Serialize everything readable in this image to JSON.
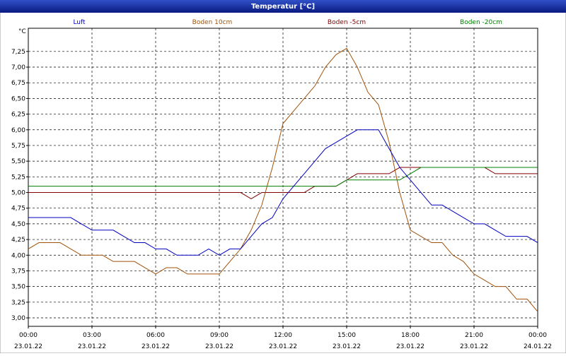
{
  "chart_data": {
    "type": "line",
    "title": "Temperatur [°C]",
    "y_unit": "°C",
    "xlim": [
      0,
      24
    ],
    "ylim": [
      2.865,
      7.62
    ],
    "xticks": [
      {
        "value": 0,
        "label": "00:00",
        "sublabel": "23.01.22"
      },
      {
        "value": 3,
        "label": "03:00",
        "sublabel": "23.01.22"
      },
      {
        "value": 6,
        "label": "06:00",
        "sublabel": "23.01.22"
      },
      {
        "value": 9,
        "label": "09:00",
        "sublabel": "23.01.22"
      },
      {
        "value": 12,
        "label": "12:00",
        "sublabel": "23.01.22"
      },
      {
        "value": 15,
        "label": "15:00",
        "sublabel": "23.01.22"
      },
      {
        "value": 18,
        "label": "18:00",
        "sublabel": "23.01.22"
      },
      {
        "value": 21,
        "label": "21:00",
        "sublabel": "23.01.22"
      },
      {
        "value": 24,
        "label": "00:00",
        "sublabel": "24.01.22"
      }
    ],
    "yticks": [
      {
        "value": 3,
        "label": "3,00"
      },
      {
        "value": 3.25,
        "label": "3,25"
      },
      {
        "value": 3.5,
        "label": "3,50"
      },
      {
        "value": 3.75,
        "label": "3,75"
      },
      {
        "value": 4,
        "label": "4,00"
      },
      {
        "value": 4.25,
        "label": "4,25"
      },
      {
        "value": 4.5,
        "label": "4,50"
      },
      {
        "value": 4.75,
        "label": "4,75"
      },
      {
        "value": 5,
        "label": "5,00"
      },
      {
        "value": 5.25,
        "label": "5,25"
      },
      {
        "value": 5.5,
        "label": "5,50"
      },
      {
        "value": 5.75,
        "label": "5,75"
      },
      {
        "value": 6,
        "label": "6,00"
      },
      {
        "value": 6.25,
        "label": "6,25"
      },
      {
        "value": 6.5,
        "label": "6,50"
      },
      {
        "value": 6.75,
        "label": "6,75"
      },
      {
        "value": 7,
        "label": "7,00"
      },
      {
        "value": 7.25,
        "label": "7,25"
      }
    ],
    "grid": true,
    "x": [
      0,
      0.5,
      1,
      1.5,
      2,
      2.5,
      3,
      3.5,
      4,
      4.5,
      5,
      5.5,
      6,
      6.5,
      7,
      7.5,
      8,
      8.5,
      9,
      9.5,
      10,
      10.5,
      11,
      11.5,
      12,
      12.5,
      13,
      13.5,
      14,
      14.5,
      15,
      15.5,
      16,
      16.5,
      17,
      17.5,
      18,
      18.5,
      19,
      19.5,
      20,
      20.5,
      21,
      21.5,
      22,
      22.5,
      23,
      23.5,
      24
    ],
    "series": [
      {
        "name": "Luft",
        "color": "#0000c0",
        "values": [
          4.6,
          4.6,
          4.6,
          4.6,
          4.6,
          4.5,
          4.4,
          4.4,
          4.4,
          4.3,
          4.2,
          4.2,
          4.1,
          4.1,
          4.0,
          4.0,
          4.0,
          4.1,
          4.0,
          4.1,
          4.1,
          4.3,
          4.5,
          4.6,
          4.9,
          5.1,
          5.3,
          5.5,
          5.7,
          5.8,
          5.9,
          6.0,
          6.0,
          6.0,
          5.7,
          5.4,
          5.2,
          5.0,
          4.8,
          4.8,
          4.7,
          4.6,
          4.5,
          4.5,
          4.4,
          4.3,
          4.3,
          4.3,
          4.2
        ]
      },
      {
        "name": "Boden 10cm",
        "color": "#a0520a",
        "values": [
          4.1,
          4.2,
          4.2,
          4.2,
          4.1,
          4.0,
          4.0,
          4.0,
          3.9,
          3.9,
          3.9,
          3.8,
          3.7,
          3.8,
          3.8,
          3.7,
          3.7,
          3.7,
          3.7,
          3.9,
          4.1,
          4.4,
          4.8,
          5.4,
          6.1,
          6.3,
          6.5,
          6.7,
          7.0,
          7.2,
          7.3,
          7.0,
          6.6,
          6.4,
          5.8,
          5.0,
          4.4,
          4.3,
          4.2,
          4.2,
          4.0,
          3.9,
          3.7,
          3.6,
          3.5,
          3.5,
          3.3,
          3.3,
          3.1
        ]
      },
      {
        "name": "Boden -5cm",
        "color": "#800000",
        "values": [
          5.0,
          5.0,
          5.0,
          5.0,
          5.0,
          5.0,
          5.0,
          5.0,
          5.0,
          5.0,
          5.0,
          5.0,
          5.0,
          5.0,
          5.0,
          5.0,
          5.0,
          5.0,
          5.0,
          5.0,
          5.0,
          4.9,
          5.0,
          5.0,
          5.0,
          5.0,
          5.0,
          5.1,
          5.1,
          5.1,
          5.2,
          5.3,
          5.3,
          5.3,
          5.3,
          5.4,
          5.4,
          5.4,
          5.4,
          5.4,
          5.4,
          5.4,
          5.4,
          5.4,
          5.3,
          5.3,
          5.3,
          5.3,
          5.3
        ]
      },
      {
        "name": "Boden -20cm",
        "color": "#008000",
        "values": [
          5.1,
          5.1,
          5.1,
          5.1,
          5.1,
          5.1,
          5.1,
          5.1,
          5.1,
          5.1,
          5.1,
          5.1,
          5.1,
          5.1,
          5.1,
          5.1,
          5.1,
          5.1,
          5.1,
          5.1,
          5.1,
          5.1,
          5.1,
          5.1,
          5.1,
          5.1,
          5.1,
          5.1,
          5.1,
          5.1,
          5.2,
          5.2,
          5.2,
          5.2,
          5.2,
          5.2,
          5.3,
          5.4,
          5.4,
          5.4,
          5.4,
          5.4,
          5.4,
          5.4,
          5.4,
          5.4,
          5.4,
          5.4,
          5.4
        ]
      }
    ]
  }
}
